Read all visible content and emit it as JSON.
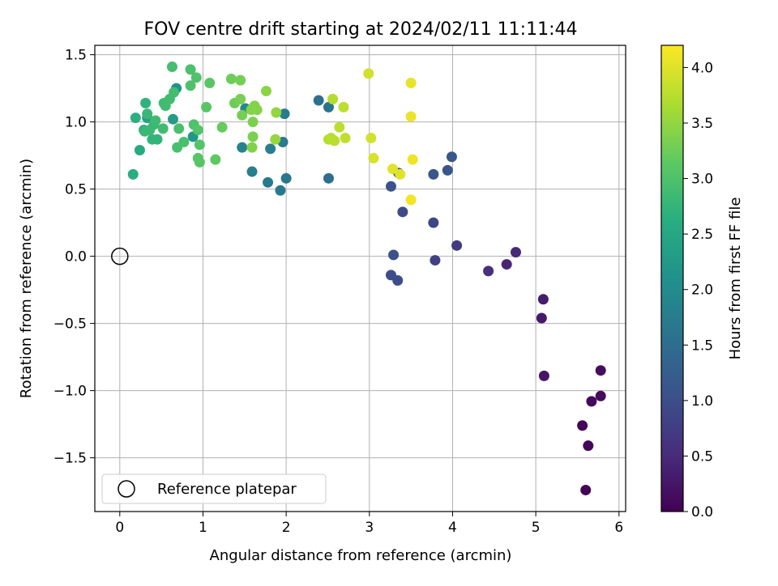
{
  "chart_data": {
    "type": "scatter",
    "title": "FOV centre drift starting at 2024/02/11 11:11:44",
    "xlabel": "Angular distance from reference (arcmin)",
    "ylabel": "Rotation from reference (arcmin)",
    "xlim": [
      -0.3,
      6.08
    ],
    "ylim": [
      -1.9,
      1.57
    ],
    "xticks": [
      0,
      1,
      2,
      3,
      4,
      5,
      6
    ],
    "xtick_labels": [
      "0",
      "1",
      "2",
      "3",
      "4",
      "5",
      "6"
    ],
    "yticks": [
      -1.5,
      -1.0,
      -0.5,
      0.0,
      0.5,
      1.0,
      1.5
    ],
    "ytick_labels": [
      "−1.5",
      "−1.0",
      "−0.5",
      "0.0",
      "0.5",
      "1.0",
      "1.5"
    ],
    "grid": true,
    "legend": {
      "placement": "lower-left",
      "entries": [
        "Reference platepar"
      ]
    },
    "reference_point": {
      "x": 0,
      "y": 0
    },
    "colorbar": {
      "label": "Hours from first FF file",
      "colormap": "viridis",
      "range": [
        0.0,
        4.2
      ],
      "ticks": [
        0.0,
        0.5,
        1.0,
        1.5,
        2.0,
        2.5,
        3.0,
        3.5,
        4.0
      ],
      "tick_labels": [
        "0.0",
        "0.5",
        "1.0",
        "1.5",
        "2.0",
        "2.5",
        "3.0",
        "3.5",
        "4.0"
      ]
    },
    "points": [
      {
        "x": 5.6,
        "y": -1.74,
        "c": 0.02
      },
      {
        "x": 5.63,
        "y": -1.41,
        "c": 0.05
      },
      {
        "x": 5.56,
        "y": -1.26,
        "c": 0.08
      },
      {
        "x": 5.67,
        "y": -1.08,
        "c": 0.1
      },
      {
        "x": 5.78,
        "y": -1.04,
        "c": 0.12
      },
      {
        "x": 5.78,
        "y": -0.85,
        "c": 0.14
      },
      {
        "x": 5.1,
        "y": -0.89,
        "c": 0.25
      },
      {
        "x": 5.07,
        "y": -0.46,
        "c": 0.3
      },
      {
        "x": 5.09,
        "y": -0.32,
        "c": 0.32
      },
      {
        "x": 4.65,
        "y": -0.06,
        "c": 0.45
      },
      {
        "x": 4.76,
        "y": 0.03,
        "c": 0.48
      },
      {
        "x": 4.43,
        "y": -0.11,
        "c": 0.55
      },
      {
        "x": 4.05,
        "y": 0.08,
        "c": 0.7
      },
      {
        "x": 3.79,
        "y": -0.03,
        "c": 0.8
      },
      {
        "x": 3.77,
        "y": 0.25,
        "c": 0.9
      },
      {
        "x": 3.4,
        "y": 0.33,
        "c": 0.95
      },
      {
        "x": 3.34,
        "y": -0.18,
        "c": 0.98
      },
      {
        "x": 3.26,
        "y": -0.14,
        "c": 1.0
      },
      {
        "x": 3.29,
        "y": 0.01,
        "c": 1.02
      },
      {
        "x": 3.26,
        "y": 0.52,
        "c": 1.05
      },
      {
        "x": 3.77,
        "y": 0.61,
        "c": 1.1
      },
      {
        "x": 3.94,
        "y": 0.64,
        "c": 1.12
      },
      {
        "x": 3.99,
        "y": 0.74,
        "c": 1.15
      },
      {
        "x": 3.35,
        "y": 0.62,
        "c": 1.3
      },
      {
        "x": 2.51,
        "y": 0.58,
        "c": 1.5
      },
      {
        "x": 2.39,
        "y": 1.16,
        "c": 1.55
      },
      {
        "x": 2.51,
        "y": 1.11,
        "c": 1.6
      },
      {
        "x": 2.0,
        "y": 0.58,
        "c": 1.65
      },
      {
        "x": 1.93,
        "y": 0.49,
        "c": 1.68
      },
      {
        "x": 1.78,
        "y": 0.55,
        "c": 1.7
      },
      {
        "x": 1.96,
        "y": 0.85,
        "c": 1.72
      },
      {
        "x": 1.98,
        "y": 1.06,
        "c": 1.75
      },
      {
        "x": 1.81,
        "y": 0.8,
        "c": 1.78
      },
      {
        "x": 1.59,
        "y": 0.63,
        "c": 1.8
      },
      {
        "x": 1.47,
        "y": 0.81,
        "c": 1.85
      },
      {
        "x": 1.51,
        "y": 1.1,
        "c": 1.95
      },
      {
        "x": 0.68,
        "y": 1.25,
        "c": 2.1
      },
      {
        "x": 0.88,
        "y": 0.89,
        "c": 2.2
      },
      {
        "x": 0.64,
        "y": 1.02,
        "c": 2.3
      },
      {
        "x": 0.33,
        "y": 1.03,
        "c": 2.4
      },
      {
        "x": 0.29,
        "y": 0.94,
        "c": 2.5
      },
      {
        "x": 0.24,
        "y": 0.79,
        "c": 2.55
      },
      {
        "x": 0.16,
        "y": 0.61,
        "c": 2.6
      },
      {
        "x": 0.19,
        "y": 1.03,
        "c": 2.65
      },
      {
        "x": 0.31,
        "y": 1.14,
        "c": 2.7
      },
      {
        "x": 0.39,
        "y": 0.87,
        "c": 2.75
      },
      {
        "x": 0.45,
        "y": 0.87,
        "c": 2.75
      },
      {
        "x": 0.33,
        "y": 1.06,
        "c": 2.8
      },
      {
        "x": 0.41,
        "y": 0.98,
        "c": 2.8
      },
      {
        "x": 0.36,
        "y": 0.94,
        "c": 2.82
      },
      {
        "x": 0.3,
        "y": 0.93,
        "c": 2.82
      },
      {
        "x": 0.43,
        "y": 1.01,
        "c": 2.85
      },
      {
        "x": 0.53,
        "y": 1.14,
        "c": 2.85
      },
      {
        "x": 0.55,
        "y": 1.12,
        "c": 2.88
      },
      {
        "x": 0.52,
        "y": 0.95,
        "c": 2.88
      },
      {
        "x": 0.6,
        "y": 1.17,
        "c": 2.9
      },
      {
        "x": 0.65,
        "y": 1.22,
        "c": 2.9
      },
      {
        "x": 0.63,
        "y": 1.41,
        "c": 2.92
      },
      {
        "x": 0.71,
        "y": 0.95,
        "c": 2.95
      },
      {
        "x": 0.69,
        "y": 0.81,
        "c": 2.95
      },
      {
        "x": 0.77,
        "y": 0.85,
        "c": 2.97
      },
      {
        "x": 0.85,
        "y": 1.39,
        "c": 2.98
      },
      {
        "x": 0.85,
        "y": 1.27,
        "c": 3.0
      },
      {
        "x": 0.89,
        "y": 0.98,
        "c": 3.0
      },
      {
        "x": 0.92,
        "y": 1.33,
        "c": 3.02
      },
      {
        "x": 0.94,
        "y": 0.94,
        "c": 3.05
      },
      {
        "x": 0.96,
        "y": 0.83,
        "c": 3.05
      },
      {
        "x": 0.94,
        "y": 0.73,
        "c": 3.08
      },
      {
        "x": 0.96,
        "y": 0.7,
        "c": 3.08
      },
      {
        "x": 1.04,
        "y": 1.11,
        "c": 3.1
      },
      {
        "x": 1.08,
        "y": 1.29,
        "c": 3.1
      },
      {
        "x": 1.15,
        "y": 0.72,
        "c": 3.15
      },
      {
        "x": 1.23,
        "y": 0.96,
        "c": 3.2
      },
      {
        "x": 1.34,
        "y": 1.32,
        "c": 3.25
      },
      {
        "x": 1.38,
        "y": 1.14,
        "c": 3.25
      },
      {
        "x": 1.45,
        "y": 1.31,
        "c": 3.3
      },
      {
        "x": 1.47,
        "y": 1.05,
        "c": 3.3
      },
      {
        "x": 1.45,
        "y": 1.17,
        "c": 3.32
      },
      {
        "x": 1.6,
        "y": 1.0,
        "c": 3.35
      },
      {
        "x": 1.6,
        "y": 0.89,
        "c": 3.35
      },
      {
        "x": 1.59,
        "y": 0.81,
        "c": 3.38
      },
      {
        "x": 1.62,
        "y": 1.12,
        "c": 3.4
      },
      {
        "x": 1.65,
        "y": 1.09,
        "c": 3.4
      },
      {
        "x": 1.58,
        "y": 1.09,
        "c": 3.42
      },
      {
        "x": 1.76,
        "y": 1.23,
        "c": 3.45
      },
      {
        "x": 1.88,
        "y": 1.07,
        "c": 3.5
      },
      {
        "x": 1.87,
        "y": 0.87,
        "c": 3.52
      },
      {
        "x": 2.51,
        "y": 0.87,
        "c": 3.7
      },
      {
        "x": 2.56,
        "y": 1.17,
        "c": 3.72
      },
      {
        "x": 2.54,
        "y": 0.88,
        "c": 3.75
      },
      {
        "x": 2.58,
        "y": 0.86,
        "c": 3.75
      },
      {
        "x": 2.64,
        "y": 0.96,
        "c": 3.78
      },
      {
        "x": 2.69,
        "y": 1.11,
        "c": 3.78
      },
      {
        "x": 2.71,
        "y": 0.88,
        "c": 3.8
      },
      {
        "x": 2.99,
        "y": 1.36,
        "c": 3.9
      },
      {
        "x": 3.02,
        "y": 0.88,
        "c": 3.92
      },
      {
        "x": 3.05,
        "y": 0.73,
        "c": 3.95
      },
      {
        "x": 3.28,
        "y": 0.65,
        "c": 4.0
      },
      {
        "x": 3.37,
        "y": 0.61,
        "c": 4.02
      },
      {
        "x": 3.5,
        "y": 1.29,
        "c": 4.05
      },
      {
        "x": 3.5,
        "y": 1.04,
        "c": 4.08
      },
      {
        "x": 3.52,
        "y": 0.72,
        "c": 4.1
      },
      {
        "x": 3.5,
        "y": 0.42,
        "c": 4.12
      }
    ]
  }
}
